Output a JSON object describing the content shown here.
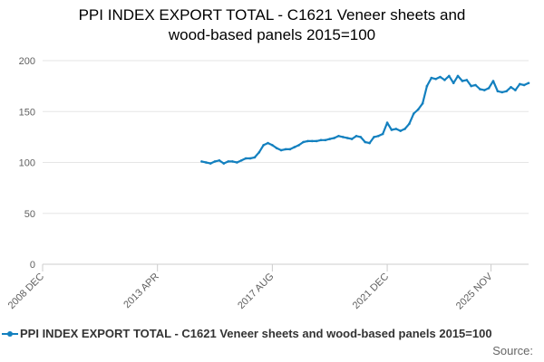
{
  "chart_data": {
    "type": "line",
    "title_lines": [
      "PPI INDEX EXPORT TOTAL - C1621 Veneer sheets and",
      "wood-based panels 2015=100"
    ],
    "xlabel": "",
    "ylabel": "",
    "x_ticks": [
      "2008 DEC",
      "2013 APR",
      "2017 AUG",
      "2021 DEC",
      "2025 NOV"
    ],
    "y_ticks": [
      0,
      50,
      100,
      150,
      200
    ],
    "ylim": [
      0,
      200
    ],
    "grid": "horizontal",
    "legend_position": "bottom",
    "series": [
      {
        "name": "PPI INDEX EXPORT TOTAL - C1621 Veneer sheets and wood-based panels 2015=100",
        "color": "#1380bf",
        "values": [
          {
            "x": "2014-12",
            "y": 101
          },
          {
            "x": "2015-02",
            "y": 100
          },
          {
            "x": "2015-04",
            "y": 99
          },
          {
            "x": "2015-06",
            "y": 101
          },
          {
            "x": "2015-08",
            "y": 102
          },
          {
            "x": "2015-10",
            "y": 99
          },
          {
            "x": "2015-12",
            "y": 101
          },
          {
            "x": "2016-02",
            "y": 101
          },
          {
            "x": "2016-04",
            "y": 100
          },
          {
            "x": "2016-06",
            "y": 102
          },
          {
            "x": "2016-08",
            "y": 104
          },
          {
            "x": "2016-10",
            "y": 104
          },
          {
            "x": "2016-12",
            "y": 105
          },
          {
            "x": "2017-02",
            "y": 110
          },
          {
            "x": "2017-04",
            "y": 117
          },
          {
            "x": "2017-06",
            "y": 119
          },
          {
            "x": "2017-08",
            "y": 117
          },
          {
            "x": "2017-10",
            "y": 114
          },
          {
            "x": "2017-12",
            "y": 112
          },
          {
            "x": "2018-02",
            "y": 113
          },
          {
            "x": "2018-04",
            "y": 113
          },
          {
            "x": "2018-06",
            "y": 115
          },
          {
            "x": "2018-08",
            "y": 117
          },
          {
            "x": "2018-10",
            "y": 120
          },
          {
            "x": "2018-12",
            "y": 121
          },
          {
            "x": "2019-02",
            "y": 121
          },
          {
            "x": "2019-04",
            "y": 121
          },
          {
            "x": "2019-06",
            "y": 122
          },
          {
            "x": "2019-08",
            "y": 122
          },
          {
            "x": "2019-10",
            "y": 123
          },
          {
            "x": "2019-12",
            "y": 124
          },
          {
            "x": "2020-02",
            "y": 126
          },
          {
            "x": "2020-04",
            "y": 125
          },
          {
            "x": "2020-06",
            "y": 124
          },
          {
            "x": "2020-08",
            "y": 123
          },
          {
            "x": "2020-10",
            "y": 126
          },
          {
            "x": "2020-12",
            "y": 125
          },
          {
            "x": "2021-02",
            "y": 120
          },
          {
            "x": "2021-04",
            "y": 119
          },
          {
            "x": "2021-06",
            "y": 125
          },
          {
            "x": "2021-08",
            "y": 126
          },
          {
            "x": "2021-10",
            "y": 128
          },
          {
            "x": "2021-12",
            "y": 139
          },
          {
            "x": "2022-02",
            "y": 132
          },
          {
            "x": "2022-04",
            "y": 133
          },
          {
            "x": "2022-06",
            "y": 131
          },
          {
            "x": "2022-08",
            "y": 133
          },
          {
            "x": "2022-10",
            "y": 138
          },
          {
            "x": "2022-12",
            "y": 148
          },
          {
            "x": "2023-02",
            "y": 152
          },
          {
            "x": "2023-04",
            "y": 158
          },
          {
            "x": "2023-06",
            "y": 175
          },
          {
            "x": "2023-08",
            "y": 183
          },
          {
            "x": "2023-10",
            "y": 182
          },
          {
            "x": "2023-12",
            "y": 184
          },
          {
            "x": "2024-02",
            "y": 181
          },
          {
            "x": "2024-04",
            "y": 185
          },
          {
            "x": "2024-06",
            "y": 178
          },
          {
            "x": "2024-08",
            "y": 185
          },
          {
            "x": "2024-10",
            "y": 180
          },
          {
            "x": "2024-12",
            "y": 181
          },
          {
            "x": "2025-02",
            "y": 175
          },
          {
            "x": "2025-04",
            "y": 176
          },
          {
            "x": "2025-06",
            "y": 172
          },
          {
            "x": "2025-08",
            "y": 171
          },
          {
            "x": "2025-10",
            "y": 173
          },
          {
            "x": "2025-12",
            "y": 180
          },
          {
            "x": "2026-02",
            "y": 170
          },
          {
            "x": "2026-04",
            "y": 169
          },
          {
            "x": "2026-06",
            "y": 170
          },
          {
            "x": "2026-08",
            "y": 174
          },
          {
            "x": "2026-10",
            "y": 171
          },
          {
            "x": "2026-12",
            "y": 177
          },
          {
            "x": "2027-02",
            "y": 176
          },
          {
            "x": "2027-04",
            "y": 178
          }
        ]
      }
    ]
  },
  "source_label": "Source:"
}
